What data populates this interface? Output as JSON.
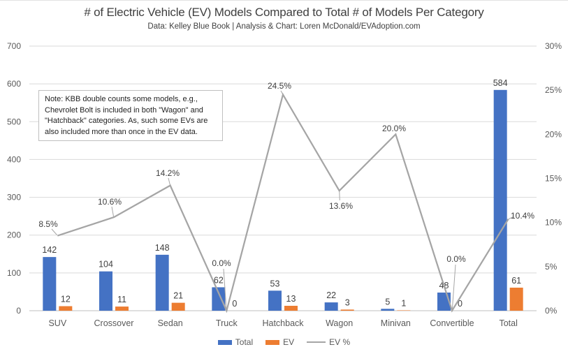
{
  "chart_data": {
    "type": "combo-bar-line",
    "title": "# of Electric Vehicle (EV) Models Compared to Total # of Models Per Category",
    "subtitle": "Data: Kelley Blue Book | Analysis & Chart: Loren McDonald/EVAdoption.com",
    "categories": [
      "SUV",
      "Crossover",
      "Sedan",
      "Truck",
      "Hatchback",
      "Wagon",
      "Minivan",
      "Convertible",
      "Total"
    ],
    "series": [
      {
        "name": "Total",
        "type": "bar",
        "axis": "left",
        "color": "#4472C4",
        "values": [
          142,
          104,
          148,
          62,
          53,
          22,
          5,
          48,
          584
        ]
      },
      {
        "name": "EV",
        "type": "bar",
        "axis": "left",
        "color": "#ED7D31",
        "values": [
          12,
          11,
          21,
          0,
          13,
          3,
          1,
          0,
          61
        ]
      },
      {
        "name": "EV %",
        "type": "line",
        "axis": "right",
        "color": "#A5A5A5",
        "values": [
          8.5,
          10.6,
          14.2,
          0.0,
          24.5,
          13.6,
          20.0,
          0.0,
          10.4
        ],
        "point_labels": [
          "8.5%",
          "10.6%",
          "14.2%",
          "0.0%",
          "24.5%",
          "13.6%",
          "20.0%",
          "0.0%",
          "10.4%"
        ]
      }
    ],
    "left_axis": {
      "min": 0,
      "max": 700,
      "tick_labels": [
        "0",
        "100",
        "200",
        "300",
        "400",
        "500",
        "600",
        "700"
      ]
    },
    "right_axis": {
      "min": 0,
      "max": 30,
      "tick_labels": [
        "0%",
        "5%",
        "10%",
        "15%",
        "20%",
        "25%",
        "30%"
      ]
    },
    "grid": true,
    "legend_position": "bottom",
    "note_lines": [
      "Note: KBB double counts some models, e.g.,",
      "Chevrolet Bolt is included in both \"Wagon\" and",
      "\"Hatchback\" categories. As, such some EVs are",
      "also included more than once in the EV data."
    ]
  },
  "colors": {
    "bar_total": "#4472C4",
    "bar_ev": "#ED7D31",
    "line_ev_pct": "#A5A5A5",
    "gridline": "#D9D9D9",
    "axis_line": "#BFBFBF",
    "axis_text": "#595959",
    "data_label_text": "#404040",
    "leader_line": "#A6A6A6",
    "note_border": "#BFBFBF"
  }
}
